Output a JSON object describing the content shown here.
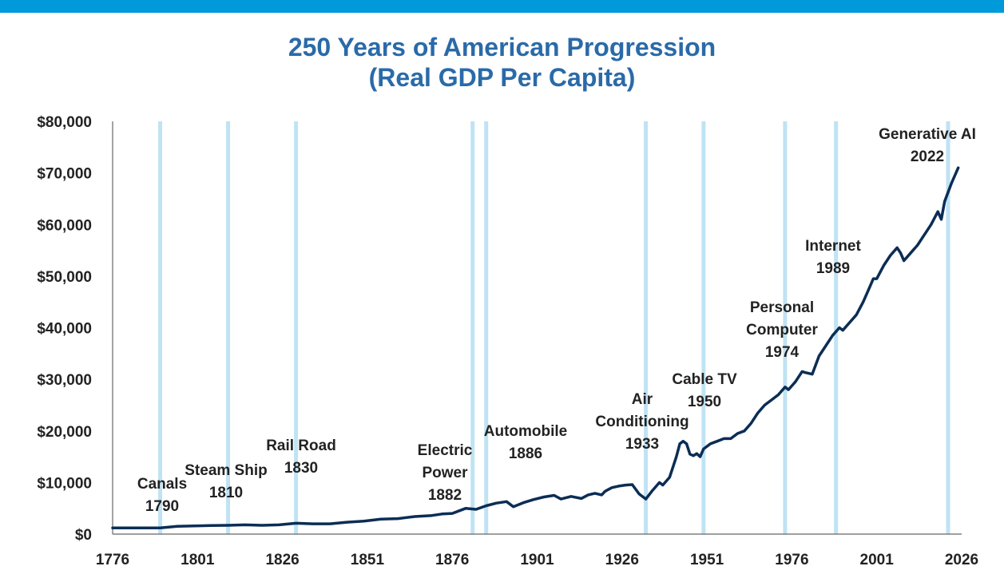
{
  "colors": {
    "top_bar": "#009ada",
    "title": "#2a6aa8",
    "line": "#0b2d55",
    "event_line": "#bfe3f4",
    "axis": "#666666"
  },
  "chart_data": {
    "type": "line",
    "title": "250 Years of American Progression",
    "subtitle": "(Real GDP Per Capita)",
    "xlabel": "",
    "ylabel": "",
    "xlim": [
      1776,
      2026
    ],
    "ylim": [
      0,
      80000
    ],
    "x_ticks": [
      1776,
      1801,
      1826,
      1851,
      1876,
      1901,
      1926,
      1951,
      1976,
      2001,
      2026
    ],
    "y_ticks": [
      0,
      10000,
      20000,
      30000,
      40000,
      50000,
      60000,
      70000,
      80000
    ],
    "y_tick_labels": [
      "$0",
      "$10,000",
      "$20,000",
      "$30,000",
      "$40,000",
      "$50,000",
      "$60,000",
      "$70,000",
      "$80,000"
    ],
    "grid": false,
    "legend": "none",
    "series": [
      {
        "x": [
          1776,
          1780,
          1785,
          1790,
          1795,
          1800,
          1805,
          1810,
          1815,
          1820,
          1825,
          1830,
          1835,
          1840,
          1845,
          1850,
          1855,
          1860,
          1865,
          1870,
          1873,
          1876,
          1880,
          1883,
          1886,
          1889,
          1892,
          1894,
          1897,
          1900,
          1903,
          1906,
          1908,
          1911,
          1914,
          1916,
          1918,
          1920,
          1921,
          1923,
          1925,
          1927,
          1929,
          1931,
          1933,
          1935,
          1937,
          1938,
          1940,
          1942,
          1943,
          1944,
          1945,
          1946,
          1947,
          1948,
          1949,
          1950,
          1952,
          1954,
          1956,
          1958,
          1960,
          1962,
          1964,
          1966,
          1968,
          1970,
          1972,
          1974,
          1975,
          1977,
          1979,
          1980,
          1982,
          1984,
          1986,
          1988,
          1990,
          1991,
          1993,
          1995,
          1997,
          1999,
          2000,
          2001,
          2003,
          2005,
          2007,
          2008,
          2009,
          2011,
          2013,
          2015,
          2017,
          2019,
          2020,
          2021,
          2023,
          2025
        ],
        "values": [
          1200,
          1200,
          1200,
          1200,
          1500,
          1600,
          1650,
          1700,
          1800,
          1700,
          1800,
          2100,
          2000,
          2000,
          2300,
          2500,
          2900,
          3000,
          3400,
          3600,
          3900,
          4000,
          5000,
          4800,
          5500,
          6000,
          6300,
          5300,
          6100,
          6700,
          7200,
          7500,
          6800,
          7300,
          6900,
          7600,
          7900,
          7600,
          8300,
          9000,
          9300,
          9500,
          9600,
          7800,
          6800,
          8500,
          10000,
          9500,
          11000,
          15000,
          17500,
          18000,
          17500,
          15500,
          15200,
          15600,
          15000,
          16500,
          17500,
          18000,
          18500,
          18500,
          19500,
          20000,
          21500,
          23500,
          25000,
          26000,
          27000,
          28500,
          28000,
          29500,
          31500,
          31300,
          31000,
          34500,
          36500,
          38500,
          40000,
          39500,
          41000,
          42500,
          45000,
          48000,
          49500,
          49500,
          52000,
          54000,
          55500,
          54500,
          53000,
          54500,
          56000,
          58000,
          60000,
          62500,
          61000,
          64500,
          68000,
          71000
        ]
      }
    ],
    "annotations": [
      {
        "year": 1790,
        "label": "Canals",
        "year_label": "1790"
      },
      {
        "year": 1810,
        "label": "Steam Ship",
        "year_label": "1810"
      },
      {
        "year": 1830,
        "label": "Rail Road",
        "year_label": "1830"
      },
      {
        "year": 1882,
        "label": "Electric Power",
        "label_lines": [
          "Electric",
          "Power"
        ],
        "year_label": "1882"
      },
      {
        "year": 1886,
        "label": "Automobile",
        "year_label": "1886"
      },
      {
        "year": 1933,
        "label": "Air Conditioning",
        "label_lines": [
          "Air",
          "Conditioning"
        ],
        "year_label": "1933"
      },
      {
        "year": 1950,
        "label": "Cable TV",
        "year_label": "1950"
      },
      {
        "year": 1974,
        "label": "Personal Computer",
        "label_lines": [
          "Personal",
          "Computer"
        ],
        "year_label": "1974"
      },
      {
        "year": 1989,
        "label": "Internet",
        "year_label": "1989"
      },
      {
        "year": 2022,
        "label": "Generative AI",
        "year_label": "2022"
      }
    ]
  }
}
